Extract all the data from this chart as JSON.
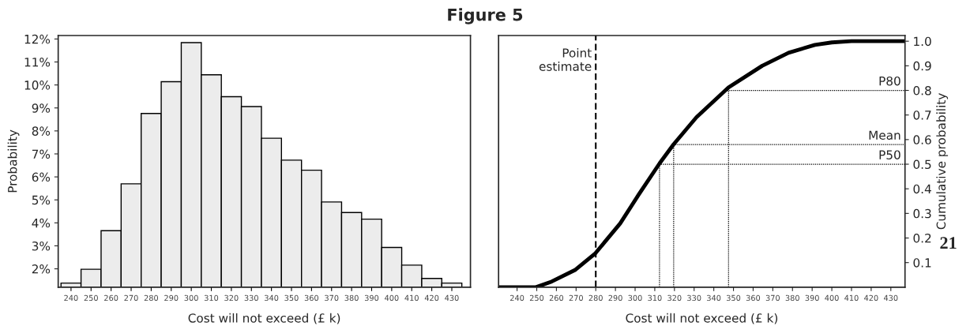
{
  "chart_data": [
    {
      "type": "histogram",
      "title": "Figure 5",
      "xlabel": "Cost will not exceed (£ k)",
      "ylabel": "Probability",
      "bins": [
        235,
        245,
        255,
        265,
        275,
        285,
        295,
        305,
        315,
        325,
        335,
        345,
        355,
        365,
        375,
        385,
        395,
        405,
        415,
        425,
        435
      ],
      "values": [
        1.38,
        1.98,
        3.66,
        5.7,
        8.76,
        10.14,
        11.84,
        10.44,
        9.49,
        9.06,
        7.68,
        6.73,
        6.29,
        4.91,
        4.45,
        4.16,
        2.93,
        2.16,
        1.58,
        1.38
      ],
      "color": "#ececec",
      "xlim": [
        233.6,
        439.3
      ],
      "xticks": [
        240,
        250,
        260,
        270,
        280,
        290,
        300,
        310,
        320,
        330,
        340,
        350,
        360,
        370,
        380,
        390,
        400,
        410,
        420,
        430
      ],
      "ylim": [
        1.2,
        12.15
      ],
      "yticks": [
        {
          "value": 2,
          "label": "2%"
        },
        {
          "value": 3,
          "label": "3%"
        },
        {
          "value": 4,
          "label": "4%"
        },
        {
          "value": 5,
          "label": "5%"
        },
        {
          "value": 6,
          "label": "6%"
        },
        {
          "value": 7,
          "label": "7%"
        },
        {
          "value": 8,
          "label": "8%"
        },
        {
          "value": 9,
          "label": "9%"
        },
        {
          "value": 10,
          "label": "10%"
        },
        {
          "value": 11,
          "label": "11%"
        },
        {
          "value": 12,
          "label": "12%"
        }
      ],
      "grid": false
    },
    {
      "type": "line",
      "xlabel": "Cost will not exceed (£ k)",
      "y2label": "Cumulative probability",
      "x": [
        230.6,
        249.6,
        257.6,
        269.7,
        279.6,
        292.4,
        301.8,
        312.5,
        319.6,
        331.2,
        347.5,
        364.6,
        378.0,
        391.4,
        400,
        410,
        437.2
      ],
      "series": [
        {
          "color": "#000000",
          "axis": "y2",
          "values": [
            0,
            0,
            0.023,
            0.071,
            0.136,
            0.259,
            0.376,
            0.504,
            0.581,
            0.691,
            0.812,
            0.9,
            0.953,
            0.985,
            0.995,
            1.0,
            1.0
          ]
        }
      ],
      "xlim": [
        230.6,
        437.2
      ],
      "xticks": [
        240,
        250,
        260,
        270,
        280,
        290,
        300,
        310,
        320,
        330,
        340,
        350,
        360,
        370,
        380,
        390,
        400,
        410,
        420,
        430
      ],
      "y2lim": [
        0,
        1.023
      ],
      "y2ticks": [
        0.1,
        0.2,
        0.3,
        0.4,
        0.5,
        0.6,
        0.7,
        0.8,
        0.9,
        {
          "value": 1,
          "label": "1.0"
        }
      ],
      "ref_lines": [
        {
          "axis": "x",
          "value": 280,
          "label": "Point\nestimate",
          "line_style": "dashed",
          "color": "#000000"
        },
        {
          "axis": "x",
          "value": 312.4,
          "line_style": "dotted",
          "color": "#000000"
        },
        {
          "axis": "x",
          "value": 319.6,
          "line_style": "dotted",
          "color": "#000000"
        },
        {
          "axis": "x",
          "value": 347.5,
          "line_style": "dotted",
          "color": "#000000"
        },
        {
          "axis": "y2",
          "value": 0.8,
          "label": "P80",
          "line_style": "dotted",
          "color": "#000000"
        },
        {
          "axis": "y2",
          "value": 0.58,
          "label": "Mean",
          "line_style": "dotted",
          "color": "#000000"
        },
        {
          "axis": "y2",
          "value": 0.5,
          "label": "P50",
          "line_style": "dotted",
          "color": "#000000"
        }
      ],
      "annotations": [
        "21"
      ],
      "marker": "none",
      "line_style": "solid",
      "grid": false
    }
  ]
}
